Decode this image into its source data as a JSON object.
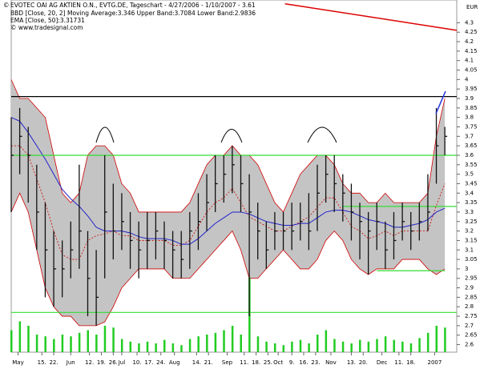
{
  "chart_data": {
    "type": "ohlc",
    "title": "EVOTEC OAI AG AKTIEN O.N., EVTG.DE, Tageschart - 4/27/2006 - 1/10/2007 - 3.61",
    "indicators": [
      {
        "label": "BBD [Close, 20, 2] Moving Average:3.346 Upper Band:3.7084 Lower Band:2.9836",
        "color": "#d00000"
      },
      {
        "label": "EMA [Close, 50]:3.31731",
        "color": "#2222cc"
      }
    ],
    "source": "© www.tradesignal.com",
    "unit": "EUR",
    "xlim": [
      0,
      262
    ],
    "xticks": [
      {
        "value": 4,
        "label": "May"
      },
      {
        "value": 18,
        "label": "15."
      },
      {
        "value": 25,
        "label": "22."
      },
      {
        "value": 35,
        "label": "Jun"
      },
      {
        "value": 46,
        "label": "12."
      },
      {
        "value": 53,
        "label": "19."
      },
      {
        "value": 60,
        "label": "26."
      },
      {
        "value": 65,
        "label": "Jul"
      },
      {
        "value": 74,
        "label": "10."
      },
      {
        "value": 81,
        "label": "17."
      },
      {
        "value": 88,
        "label": "24."
      },
      {
        "value": 96,
        "label": "Aug"
      },
      {
        "value": 109,
        "label": "14."
      },
      {
        "value": 116,
        "label": "21."
      },
      {
        "value": 127,
        "label": "Sep"
      },
      {
        "value": 137,
        "label": "11."
      },
      {
        "value": 144,
        "label": "18."
      },
      {
        "value": 151,
        "label": "25."
      },
      {
        "value": 157,
        "label": "Oct"
      },
      {
        "value": 165,
        "label": "9."
      },
      {
        "value": 172,
        "label": "16."
      },
      {
        "value": 179,
        "label": "23."
      },
      {
        "value": 188,
        "label": "Nov"
      },
      {
        "value": 200,
        "label": "13."
      },
      {
        "value": 207,
        "label": "20."
      },
      {
        "value": 218,
        "label": "Dec"
      },
      {
        "value": 228,
        "label": "11."
      },
      {
        "value": 235,
        "label": "18."
      },
      {
        "value": 249,
        "label": "2007"
      }
    ],
    "ylim": [
      2.56,
      4.42
    ],
    "yticks": [
      2.6,
      2.65,
      2.7,
      2.75,
      2.8,
      2.85,
      2.9,
      2.95,
      3,
      3.05,
      3.1,
      3.15,
      3.2,
      3.25,
      3.3,
      3.35,
      3.4,
      3.45,
      3.5,
      3.55,
      3.6,
      3.65,
      3.7,
      3.75,
      3.8,
      3.85,
      3.9,
      3.95,
      4,
      4.05,
      4.1,
      4.15,
      4.2,
      4.25,
      4.3
    ],
    "x": [
      0,
      5,
      10,
      15,
      20,
      25,
      30,
      35,
      40,
      45,
      50,
      55,
      60,
      65,
      70,
      75,
      80,
      85,
      90,
      95,
      100,
      105,
      110,
      115,
      120,
      125,
      130,
      135,
      140,
      145,
      150,
      155,
      160,
      165,
      170,
      175,
      180,
      185,
      190,
      195,
      200,
      205,
      210,
      215,
      220,
      225,
      230,
      235,
      240,
      245,
      250,
      255
    ],
    "high": [
      3.8,
      3.85,
      3.75,
      3.55,
      3.35,
      3.2,
      3.15,
      3.25,
      3.55,
      3.2,
      3.1,
      3.6,
      3.45,
      3.4,
      3.3,
      3.25,
      3.3,
      3.3,
      3.25,
      3.2,
      3.2,
      3.3,
      3.4,
      3.5,
      3.6,
      3.6,
      3.65,
      3.6,
      3.5,
      3.35,
      3.25,
      3.3,
      3.3,
      3.35,
      3.35,
      3.4,
      3.55,
      3.6,
      3.6,
      3.5,
      3.45,
      3.35,
      3.3,
      3.35,
      3.25,
      3.3,
      3.35,
      3.3,
      3.35,
      3.5,
      3.85,
      3.75
    ],
    "low": [
      3.3,
      3.5,
      3.35,
      3.1,
      2.85,
      2.8,
      2.85,
      2.95,
      3.0,
      2.75,
      2.7,
      2.95,
      3.05,
      3.1,
      3.0,
      2.95,
      3.0,
      3.05,
      3.0,
      2.95,
      2.95,
      3.0,
      3.1,
      3.2,
      3.3,
      3.35,
      3.4,
      3.3,
      2.75,
      3.05,
      3.0,
      3.1,
      3.1,
      3.1,
      3.15,
      3.1,
      3.2,
      3.35,
      3.3,
      3.25,
      3.15,
      3.05,
      2.97,
      3.1,
      3.0,
      3.05,
      3.15,
      3.1,
      3.15,
      3.2,
      3.45,
      3.6
    ],
    "close": [
      3.6,
      3.7,
      3.6,
      3.3,
      3.1,
      3.0,
      3.0,
      3.1,
      3.2,
      2.95,
      2.85,
      3.3,
      3.2,
      3.25,
      3.15,
      3.1,
      3.15,
      3.2,
      3.15,
      3.1,
      3.05,
      3.2,
      3.25,
      3.35,
      3.45,
      3.5,
      3.55,
      3.45,
      3.3,
      3.2,
      3.1,
      3.2,
      3.2,
      3.2,
      3.25,
      3.2,
      3.4,
      3.5,
      3.45,
      3.4,
      3.3,
      3.25,
      3.2,
      3.25,
      3.1,
      3.15,
      3.25,
      3.2,
      3.25,
      3.3,
      3.65,
      3.7
    ],
    "upper_band": [
      4.0,
      3.9,
      3.9,
      3.85,
      3.8,
      3.6,
      3.4,
      3.35,
      3.4,
      3.6,
      3.65,
      3.65,
      3.6,
      3.45,
      3.4,
      3.3,
      3.3,
      3.3,
      3.3,
      3.3,
      3.3,
      3.35,
      3.45,
      3.55,
      3.6,
      3.6,
      3.65,
      3.6,
      3.6,
      3.55,
      3.45,
      3.35,
      3.3,
      3.4,
      3.5,
      3.55,
      3.6,
      3.6,
      3.55,
      3.45,
      3.4,
      3.4,
      3.35,
      3.35,
      3.4,
      3.35,
      3.35,
      3.35,
      3.35,
      3.4,
      3.7,
      3.9
    ],
    "lower_band": [
      3.3,
      3.4,
      3.3,
      3.1,
      2.9,
      2.8,
      2.75,
      2.75,
      2.7,
      2.7,
      2.7,
      2.72,
      2.8,
      2.9,
      2.95,
      3.0,
      3.0,
      3.0,
      3.0,
      2.95,
      2.95,
      2.95,
      3.0,
      3.05,
      3.1,
      3.15,
      3.2,
      3.1,
      2.95,
      2.95,
      3.0,
      3.05,
      3.1,
      3.05,
      3.0,
      3.0,
      3.05,
      3.15,
      3.2,
      3.15,
      3.05,
      3.0,
      2.97,
      3.0,
      3.0,
      3.0,
      3.05,
      3.05,
      3.05,
      3.0,
      2.97,
      3.0
    ],
    "moving_average": [
      3.65,
      3.65,
      3.6,
      3.475,
      3.35,
      3.2,
      3.075,
      3.05,
      3.05,
      3.15,
      3.175,
      3.185,
      3.2,
      3.175,
      3.175,
      3.15,
      3.15,
      3.15,
      3.15,
      3.125,
      3.125,
      3.15,
      3.225,
      3.3,
      3.35,
      3.375,
      3.425,
      3.35,
      3.275,
      3.25,
      3.225,
      3.2,
      3.2,
      3.225,
      3.25,
      3.275,
      3.325,
      3.375,
      3.375,
      3.3,
      3.225,
      3.2,
      3.16,
      3.175,
      3.2,
      3.175,
      3.2,
      3.2,
      3.2,
      3.2,
      3.335,
      3.45
    ],
    "ema": [
      3.8,
      3.78,
      3.72,
      3.65,
      3.58,
      3.5,
      3.42,
      3.37,
      3.33,
      3.28,
      3.22,
      3.2,
      3.2,
      3.2,
      3.19,
      3.17,
      3.16,
      3.16,
      3.16,
      3.15,
      3.13,
      3.13,
      3.16,
      3.2,
      3.24,
      3.27,
      3.3,
      3.3,
      3.29,
      3.27,
      3.25,
      3.24,
      3.23,
      3.23,
      3.24,
      3.24,
      3.27,
      3.3,
      3.31,
      3.31,
      3.3,
      3.28,
      3.26,
      3.25,
      3.24,
      3.22,
      3.22,
      3.23,
      3.24,
      3.26,
      3.3,
      3.32
    ],
    "volume": [
      25,
      35,
      30,
      20,
      18,
      15,
      20,
      18,
      22,
      25,
      20,
      30,
      28,
      15,
      12,
      10,
      12,
      10,
      14,
      10,
      8,
      15,
      18,
      20,
      22,
      25,
      30,
      20,
      85,
      18,
      12,
      10,
      8,
      12,
      14,
      10,
      20,
      25,
      15,
      12,
      10,
      14,
      12,
      15,
      18,
      14,
      12,
      10,
      16,
      22,
      30,
      28
    ],
    "volume_lim": [
      0,
      100
    ],
    "volume_color": "#22cc22",
    "levels": [
      {
        "value": 3.91,
        "color": "#000000",
        "x": [
          0,
          262
        ]
      },
      {
        "value": 3.6,
        "color": "#33dd33",
        "x": [
          0,
          262
        ]
      },
      {
        "value": 3.33,
        "color": "#33dd33",
        "x": [
          195,
          262
        ]
      },
      {
        "value": 2.99,
        "color": "#33dd33",
        "x": [
          215,
          255
        ]
      },
      {
        "value": 2.77,
        "color": "#33dd33",
        "x": [
          0,
          262
        ]
      }
    ],
    "trendline": {
      "x": [
        161,
        262
      ],
      "y": [
        4.4,
        4.26
      ],
      "color": "#dd0000"
    }
  }
}
